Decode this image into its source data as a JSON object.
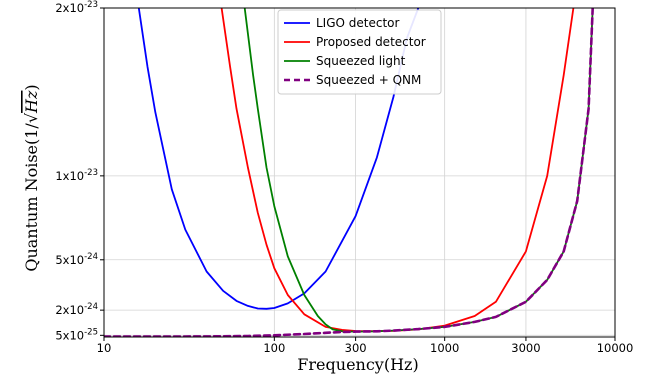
{
  "chart_data": {
    "type": "line",
    "title": "",
    "xlabel": "Frequency(Hz)",
    "ylabel_prefix": "Quantum Noise(1/",
    "ylabel_radical": "Hz",
    "ylabel_suffix": ")",
    "x_scale": "log",
    "xlim": [
      10,
      10000
    ],
    "ylim": [
      4e-25,
      2e-23
    ],
    "x_ticks": [
      {
        "value": 10,
        "label": "10"
      },
      {
        "value": 100,
        "label": "100"
      },
      {
        "value": 300,
        "label": "300"
      },
      {
        "value": 1000,
        "label": "1000"
      },
      {
        "value": 3000,
        "label": "3000"
      },
      {
        "value": 10000,
        "label": "10000"
      }
    ],
    "y_ticks": [
      {
        "value": 5e-25,
        "label": "5x10"
      },
      {
        "value": 2e-24,
        "label": "2x10"
      },
      {
        "value": 5e-24,
        "label": "5x10"
      },
      {
        "value": 1e-23,
        "label": "1x10"
      },
      {
        "value": 2e-23,
        "label": "2x10"
      }
    ],
    "y_tick_exponents": [
      "-25",
      "-24",
      "-24",
      "-23",
      "-23"
    ],
    "grid": true,
    "legend_position": "top-right",
    "series": [
      {
        "name": "LIGO detector",
        "color": "#0000ff",
        "dash": "solid",
        "x": [
          16,
          18,
          20,
          25,
          30,
          40,
          50,
          60,
          70,
          80,
          90,
          100,
          120,
          150,
          200,
          300,
          400,
          500,
          600,
          700
        ],
        "y": [
          2e-23,
          1.65e-23,
          1.38e-23,
          9.2e-24,
          6.8e-24,
          4.3e-24,
          3.15e-24,
          2.55e-24,
          2.25e-24,
          2.1e-24,
          2.08e-24,
          2.13e-24,
          2.4e-24,
          3e-24,
          4.3e-24,
          7.6e-24,
          1.11e-23,
          1.47e-23,
          1.82e-23,
          2e-23
        ]
      },
      {
        "name": "Proposed detector",
        "color": "#ff0000",
        "dash": "solid",
        "x": [
          49,
          55,
          60,
          70,
          80,
          90,
          100,
          120,
          150,
          200,
          250,
          300,
          400,
          500,
          700,
          1000,
          1500,
          2000,
          3000,
          4000,
          5000,
          5700
        ],
        "y": [
          2e-23,
          1.65e-23,
          1.4e-23,
          1.05e-23,
          7.8e-24,
          5.9e-24,
          4.5e-24,
          2.9e-24,
          1.75e-24,
          1e-24,
          8.2e-25,
          7.6e-25,
          7.5e-25,
          7.7e-25,
          8.5e-25,
          1.08e-24,
          1.65e-24,
          2.5e-24,
          5.5e-24,
          1e-23,
          1.6e-23,
          2e-23
        ]
      },
      {
        "name": "Squeezed light",
        "color": "#008000",
        "dash": "solid",
        "x": [
          67,
          75,
          80,
          90,
          100,
          120,
          150,
          180,
          200,
          220,
          250,
          300,
          400,
          500,
          700,
          1000,
          1500,
          2000,
          3000,
          4000,
          5000,
          6000,
          7000,
          7400
        ],
        "y": [
          2e-23,
          1.6e-23,
          1.4e-23,
          1.05e-23,
          8.2e-24,
          5.2e-24,
          2.9e-24,
          1.65e-24,
          1.15e-24,
          8.5e-25,
          7.4e-25,
          7.2e-25,
          7.4e-25,
          7.8e-25,
          8.7e-25,
          1e-24,
          1.3e-24,
          1.6e-24,
          2.5e-24,
          3.8e-24,
          5.5e-24,
          8.5e-24,
          1.4e-23,
          2e-23
        ]
      },
      {
        "name": "Squeezed + QNM",
        "color": "#800080",
        "dash": "dashed",
        "x": [
          10,
          30,
          50,
          70,
          100,
          150,
          200,
          250,
          300,
          400,
          500,
          700,
          1000,
          1500,
          2000,
          3000,
          4000,
          5000,
          6000,
          7000,
          7400
        ],
        "y": [
          4.25e-25,
          4.3e-25,
          4.4e-25,
          4.6e-25,
          5e-25,
          5.8e-25,
          6.5e-25,
          7e-25,
          7.2e-25,
          7.4e-25,
          7.8e-25,
          8.7e-25,
          1e-24,
          1.3e-24,
          1.6e-24,
          2.5e-24,
          3.8e-24,
          5.5e-24,
          8.5e-24,
          1.4e-23,
          2e-23
        ]
      }
    ]
  }
}
